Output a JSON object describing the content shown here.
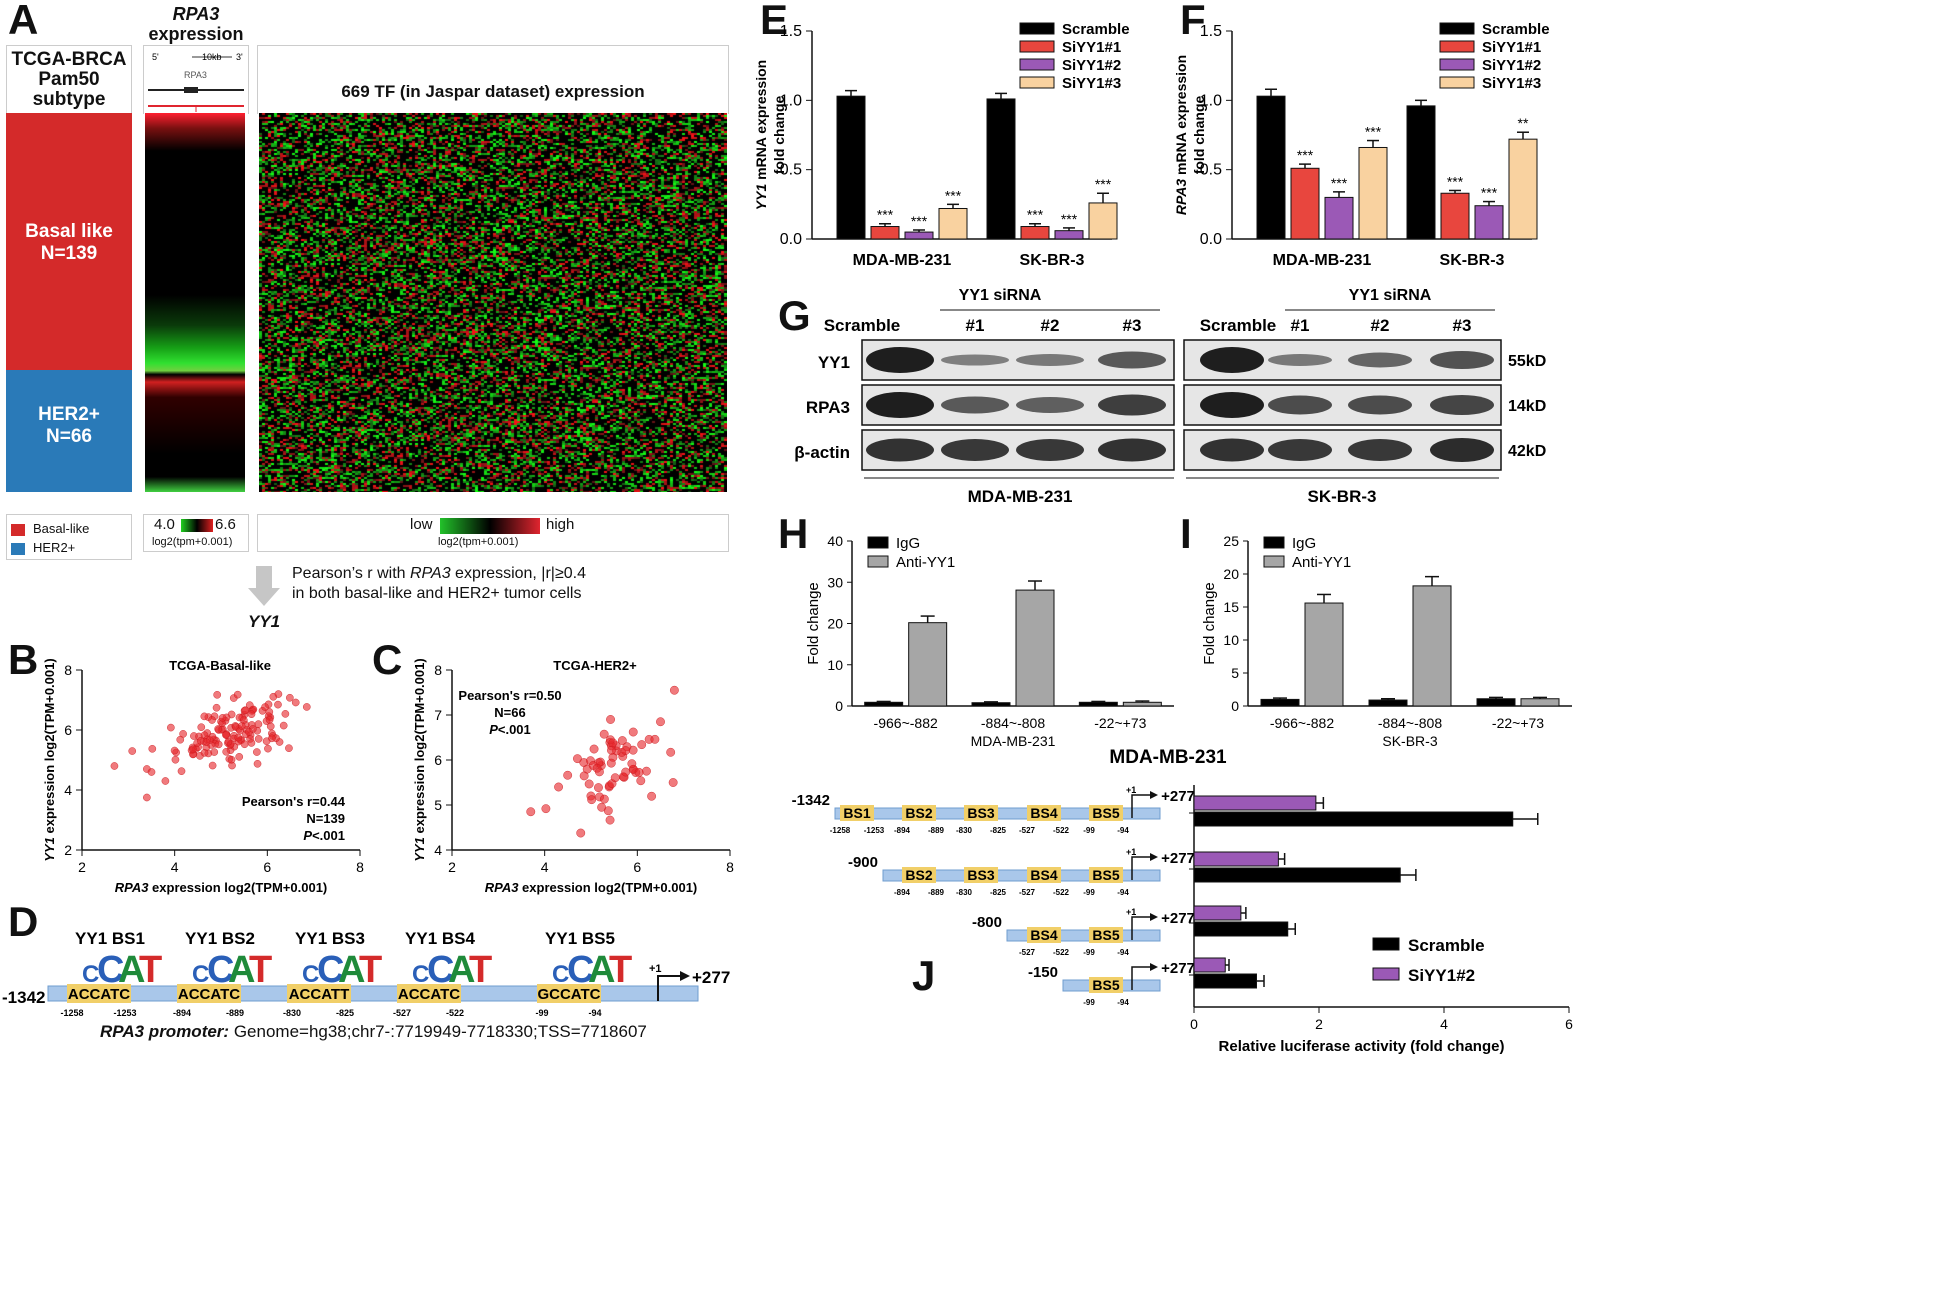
{
  "panel_labels": {
    "A": "A",
    "B": "B",
    "C": "C",
    "D": "D",
    "E": "E",
    "F": "F",
    "G": "G",
    "H": "H",
    "I": "I",
    "J": "J"
  },
  "panelA": {
    "col1_title": "TCGA-BRCA Pam50 subtype",
    "col1_title_lines": [
      "TCGA-BRCA",
      "Pam50",
      "subtype"
    ],
    "col2_gene": "RPA3",
    "col2_suffix": "expression",
    "track_5p": "5'",
    "track_3p": "3'",
    "track_scale": "10kb",
    "track_gene": "RPA3",
    "col3_title": "669 TF (in Jaspar dataset) expression",
    "basal_label": "Basal like",
    "basal_n": "N=139",
    "her2_label": "HER2+",
    "her2_n": "N=66",
    "legend_basal": "Basal-like",
    "legend_her2": "HER2+",
    "scale_min": "4.0",
    "scale_max": "6.6",
    "scale_unit": "log2(tpm+0.001)",
    "scale_low": "low",
    "scale_high": "high",
    "scale_unit2": "log2(tpm+0.001)",
    "colors": {
      "basal": "#d42a2a",
      "her2": "#2a7ab8",
      "green": "#22c22a",
      "red": "#e0252f"
    },
    "arrow_text_1a": "Pearson’s r with ",
    "arrow_text_1b": "RPA3",
    "arrow_text_1c": " expression, |r|≥0.4",
    "arrow_text_2": "in both basal-like and HER2+ tumor cells",
    "result_gene": "YY1"
  },
  "chart_data": [
    {
      "id": "B",
      "type": "scatter",
      "title": "TCGA-Basal-like",
      "xlabel_gene": "RPA3",
      "xlabel": " expression log2(TPM+0.001)",
      "ylabel_gene": "YY1",
      "ylabel": " expression log2(TPM+0.001)",
      "xlim": [
        2,
        8
      ],
      "ylim": [
        2,
        8
      ],
      "xticks": [
        2,
        4,
        6,
        8
      ],
      "yticks": [
        2,
        4,
        6,
        8
      ],
      "annotation": [
        "Pearson's r=0.44",
        "N=139",
        "P<.001"
      ],
      "n": 139,
      "r": 0.44,
      "x_center": 5.2,
      "y_center": 5.9,
      "x_sd": 0.7,
      "y_sd": 0.6,
      "outliers": [
        [
          2.7,
          4.8
        ],
        [
          3.4,
          3.75
        ],
        [
          3.4,
          4.7
        ],
        [
          3.5,
          4.6
        ],
        [
          3.8,
          4.3
        ]
      ]
    },
    {
      "id": "C",
      "type": "scatter",
      "title": "TCGA-HER2+",
      "xlabel_gene": "RPA3",
      "xlabel": " expression log2(TPM+0.001)",
      "ylabel_gene": "YY1",
      "ylabel": " expression log2(TPM+0.001)",
      "xlim": [
        2,
        8
      ],
      "ylim": [
        4,
        8
      ],
      "xticks": [
        2,
        4,
        6,
        8
      ],
      "yticks": [
        4,
        5,
        6,
        7,
        8
      ],
      "annotation": [
        "Pearson's r=0.50",
        "N=66",
        "P<.001"
      ],
      "n": 66,
      "r": 0.5,
      "x_center": 5.5,
      "y_center": 5.9,
      "x_sd": 0.55,
      "y_sd": 0.5,
      "outliers": [
        [
          3.7,
          4.85
        ],
        [
          6.8,
          7.55
        ],
        [
          6.5,
          6.85
        ],
        [
          4.3,
          5.4
        ]
      ]
    },
    {
      "id": "E",
      "type": "bar",
      "ylabel_gene": "YY1",
      "ylabel": " mRNA expression fold change",
      "ylim": [
        0,
        1.5
      ],
      "yticks": [
        "0.0",
        "0.5",
        "1.0",
        "1.5"
      ],
      "categories": [
        "MDA-MB-231",
        "SK-BR-3"
      ],
      "series": [
        {
          "name": "Scramble",
          "color": "#000000",
          "values": [
            1.03,
            1.01
          ],
          "errors": [
            0.04,
            0.04
          ],
          "sig": [
            "",
            ""
          ]
        },
        {
          "name": "SiYY1#1",
          "color": "#e8463e",
          "values": [
            0.09,
            0.09
          ],
          "errors": [
            0.02,
            0.02
          ],
          "sig": [
            "***",
            "***"
          ]
        },
        {
          "name": "SiYY1#2",
          "color": "#9b59b6",
          "values": [
            0.05,
            0.06
          ],
          "errors": [
            0.015,
            0.02
          ],
          "sig": [
            "***",
            "***"
          ]
        },
        {
          "name": "SiYY1#3",
          "color": "#f9d2a0",
          "values": [
            0.22,
            0.26
          ],
          "errors": [
            0.03,
            0.07
          ],
          "sig": [
            "***",
            "***"
          ]
        }
      ]
    },
    {
      "id": "F",
      "type": "bar",
      "ylabel_gene": "RPA3",
      "ylabel": " mRNA expression fold change",
      "ylim": [
        0,
        1.5
      ],
      "yticks": [
        "0.0",
        "0.5",
        "1.0",
        "1.5"
      ],
      "categories": [
        "MDA-MB-231",
        "SK-BR-3"
      ],
      "series": [
        {
          "name": "Scramble",
          "color": "#000000",
          "values": [
            1.03,
            0.96
          ],
          "errors": [
            0.05,
            0.04
          ],
          "sig": [
            "",
            ""
          ]
        },
        {
          "name": "SiYY1#1",
          "color": "#e8463e",
          "values": [
            0.51,
            0.33
          ],
          "errors": [
            0.03,
            0.02
          ],
          "sig": [
            "***",
            "***"
          ]
        },
        {
          "name": "SiYY1#2",
          "color": "#9b59b6",
          "values": [
            0.3,
            0.24
          ],
          "errors": [
            0.04,
            0.03
          ],
          "sig": [
            "***",
            "***"
          ]
        },
        {
          "name": "SiYY1#3",
          "color": "#f9d2a0",
          "values": [
            0.66,
            0.72
          ],
          "errors": [
            0.05,
            0.05
          ],
          "sig": [
            "***",
            "**"
          ]
        }
      ]
    },
    {
      "id": "H",
      "type": "bar",
      "ylabel": "Fold change",
      "ylim": [
        0,
        40
      ],
      "yticks": [
        "0",
        "10",
        "20",
        "30",
        "40"
      ],
      "categories": [
        "-966~-882",
        "-884~-808",
        "-22~+73"
      ],
      "xsub": "MDA-MB-231",
      "series": [
        {
          "name": "IgG",
          "color": "#000000",
          "values": [
            0.9,
            0.8,
            0.9
          ],
          "errors": [
            0.2,
            0.2,
            0.2
          ]
        },
        {
          "name": "Anti-YY1",
          "color": "#a6a6a6",
          "values": [
            20.2,
            28.1,
            0.9
          ],
          "errors": [
            1.6,
            2.2,
            0.3
          ]
        }
      ]
    },
    {
      "id": "I",
      "type": "bar",
      "ylabel": "Fold change",
      "ylim": [
        0,
        25
      ],
      "yticks": [
        "0",
        "5",
        "10",
        "15",
        "20",
        "25"
      ],
      "categories": [
        "-966~-882",
        "-884~-808",
        "-22~+73"
      ],
      "xsub": "SK-BR-3",
      "series": [
        {
          "name": "IgG",
          "color": "#000000",
          "values": [
            1.0,
            0.9,
            1.1
          ],
          "errors": [
            0.2,
            0.2,
            0.2
          ]
        },
        {
          "name": "Anti-YY1",
          "color": "#a6a6a6",
          "values": [
            15.6,
            18.2,
            1.1
          ],
          "errors": [
            1.3,
            1.4,
            0.2
          ]
        }
      ]
    },
    {
      "id": "J",
      "type": "bar",
      "orientation": "horizontal",
      "title": "MDA-MB-231",
      "xlabel": "Relative luciferase activity (fold change)",
      "xlim": [
        0,
        6
      ],
      "xticks": [
        "0",
        "2",
        "4",
        "6"
      ],
      "categories": [
        "-1342",
        "-900",
        "-800",
        "-150"
      ],
      "series": [
        {
          "name": "Scramble",
          "color": "#000000",
          "values": [
            5.1,
            3.3,
            1.5,
            1.0
          ],
          "errors": [
            0.4,
            0.25,
            0.12,
            0.12
          ]
        },
        {
          "name": "SiYY1#2",
          "color": "#9b59b6",
          "values": [
            1.95,
            1.35,
            0.75,
            0.5
          ],
          "errors": [
            0.12,
            0.1,
            0.08,
            0.06
          ]
        }
      ]
    }
  ],
  "panelD": {
    "start": "-1342",
    "end": "+277",
    "tss": "+1",
    "sites": [
      {
        "name": "YY1 BS1",
        "seq": "ACCATC",
        "pos1": "-1258",
        "pos2": "-1253"
      },
      {
        "name": "YY1 BS2",
        "seq": "ACCATC",
        "pos1": "-894",
        "pos2": "-889"
      },
      {
        "name": "YY1 BS3",
        "seq": "ACCATT",
        "pos1": "-830",
        "pos2": "-825"
      },
      {
        "name": "YY1 BS4",
        "seq": "ACCATC",
        "pos1": "-527",
        "pos2": "-522"
      },
      {
        "name": "YY1 BS5",
        "seq": "GCCATC",
        "pos1": "-99",
        "pos2": "-94"
      }
    ],
    "logo": [
      "C",
      "C",
      "A",
      "T"
    ],
    "caption_bold": "RPA3 promoter:",
    "caption_rest": " Genome=hg38;chr7-:7719949-7718330;TSS=7718607"
  },
  "panelG": {
    "cols": [
      "Scramble",
      "#1",
      "#2",
      "#3"
    ],
    "sirna": "YY1 siRNA",
    "rows": [
      "YY1",
      "RPA3",
      "β-actin"
    ],
    "sizes": [
      "55kD",
      "14kD",
      "42kD"
    ],
    "lines": [
      "MDA-MB-231",
      "SK-BR-3"
    ]
  },
  "panelJ": {
    "constructs": [
      {
        "start": "-1342",
        "sites": [
          [
            "BS1",
            "-1258",
            "-1253"
          ],
          [
            "BS2",
            "-894",
            "-889"
          ],
          [
            "BS3",
            "-830",
            "-825"
          ],
          [
            "BS4",
            "-527",
            "-522"
          ],
          [
            "BS5",
            "-99",
            "-94"
          ]
        ]
      },
      {
        "start": "-900",
        "sites": [
          [
            "BS2",
            "-894",
            "-889"
          ],
          [
            "BS3",
            "-830",
            "-825"
          ],
          [
            "BS4",
            "-527",
            "-522"
          ],
          [
            "BS5",
            "-99",
            "-94"
          ]
        ]
      },
      {
        "start": "-800",
        "sites": [
          [
            "BS4",
            "-527",
            "-522"
          ],
          [
            "BS5",
            "-99",
            "-94"
          ]
        ]
      },
      {
        "start": "-150",
        "sites": [
          [
            "BS5",
            "-99",
            "-94"
          ]
        ]
      }
    ],
    "end": "+277",
    "tss": "+1"
  }
}
